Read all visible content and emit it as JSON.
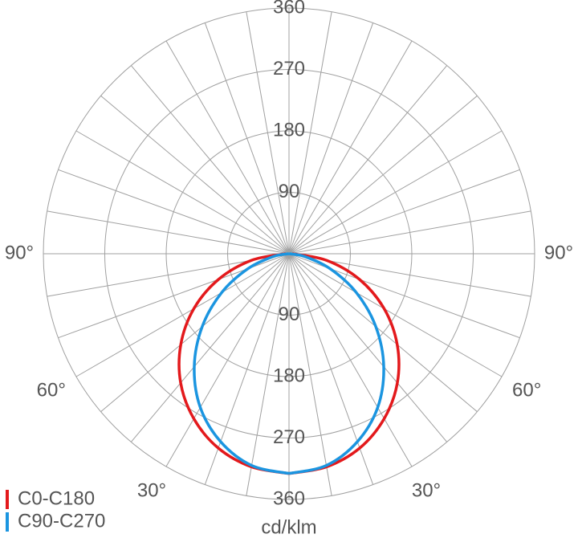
{
  "chart_data": {
    "type": "polar",
    "angles": [
      0,
      10,
      20,
      30,
      40,
      50,
      60,
      70,
      80,
      90
    ],
    "series": [
      {
        "name": "C0-C180",
        "color": "#e3191c",
        "values": [
          322,
          317,
          303,
          279,
          247,
          207,
          161,
          110,
          56,
          5
        ]
      },
      {
        "name": "C90-C270",
        "color": "#1b95e0",
        "values": [
          322,
          315,
          293,
          260,
          216,
          166,
          114,
          64,
          23,
          0
        ]
      }
    ],
    "rlim": [
      0,
      360
    ],
    "rticks": [
      90,
      180,
      270,
      360
    ],
    "angle_ticks": [
      {
        "value": 30,
        "label": "30°"
      },
      {
        "value": 60,
        "label": "60°"
      },
      {
        "value": 90,
        "label": "90°"
      }
    ],
    "unit_label": "cd/klm",
    "legend": "bottom-left"
  }
}
